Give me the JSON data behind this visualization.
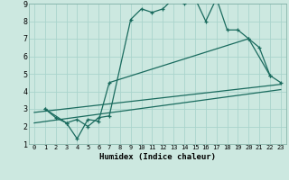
{
  "title": "",
  "xlabel": "Humidex (Indice chaleur)",
  "xlim": [
    -0.5,
    23.5
  ],
  "ylim": [
    1,
    9
  ],
  "xticks": [
    0,
    1,
    2,
    3,
    4,
    5,
    6,
    7,
    8,
    9,
    10,
    11,
    12,
    13,
    14,
    15,
    16,
    17,
    18,
    19,
    20,
    21,
    22,
    23
  ],
  "yticks": [
    1,
    2,
    3,
    4,
    5,
    6,
    7,
    8,
    9
  ],
  "bg_color": "#cce8e0",
  "line_color": "#1a6b5e",
  "grid_color": "#aad4cc",
  "line1_x": [
    1,
    2,
    3,
    4,
    5,
    6,
    7,
    9,
    10,
    11,
    12,
    13,
    14,
    15,
    16,
    17,
    18,
    19,
    20,
    21,
    22,
    23
  ],
  "line1_y": [
    3.0,
    2.5,
    2.2,
    2.4,
    2.0,
    2.5,
    2.6,
    8.1,
    8.7,
    8.5,
    8.7,
    9.3,
    9.0,
    9.3,
    8.0,
    9.3,
    7.5,
    7.5,
    7.0,
    6.5,
    4.9,
    4.5
  ],
  "line2_x": [
    1,
    3,
    4,
    5,
    6,
    7,
    20,
    22
  ],
  "line2_y": [
    3.0,
    2.2,
    1.3,
    2.4,
    2.3,
    4.5,
    7.0,
    4.9
  ],
  "line3_x": [
    0,
    23
  ],
  "line3_y": [
    2.8,
    4.4
  ],
  "line4_x": [
    0,
    23
  ],
  "line4_y": [
    2.2,
    4.1
  ]
}
